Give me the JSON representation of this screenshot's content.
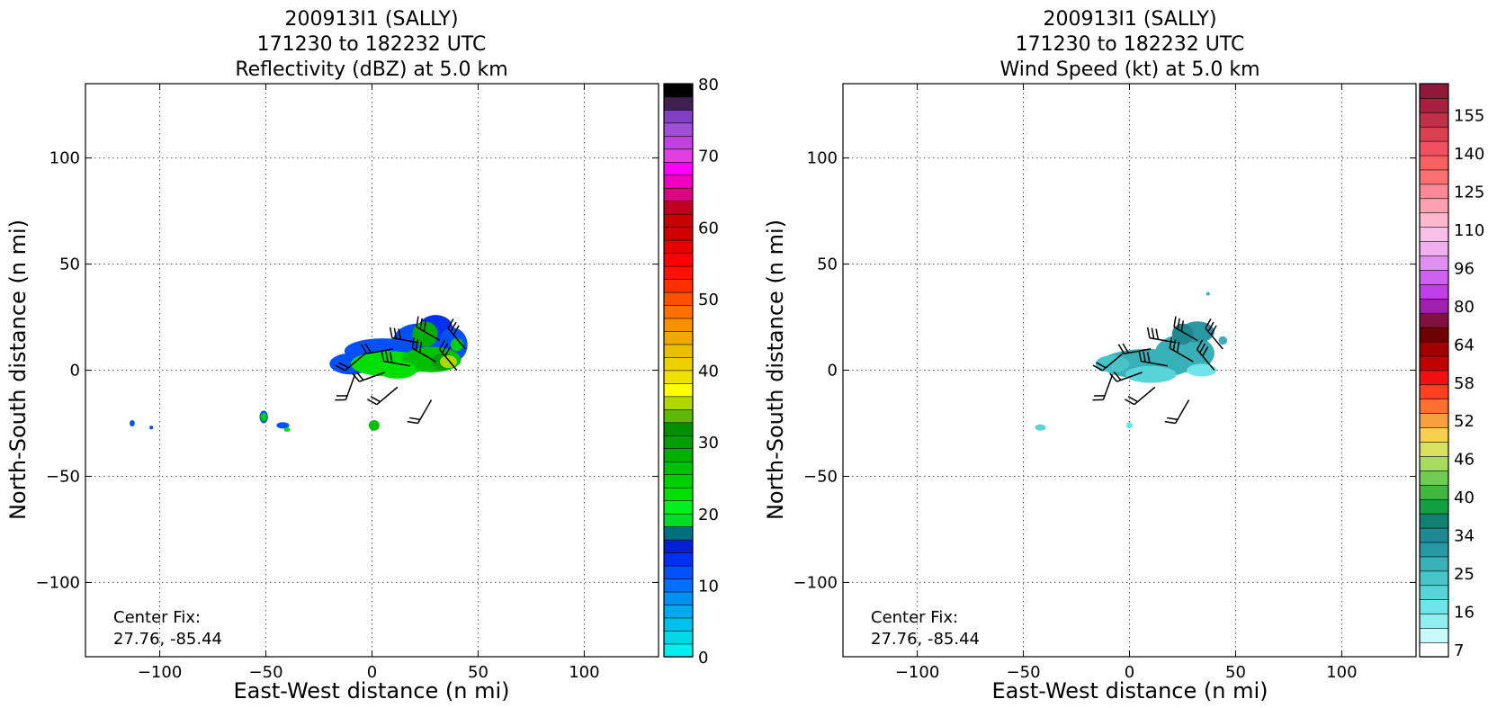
{
  "chart_data": [
    {
      "type": "heatmap",
      "panel": "reflectivity",
      "title_lines": [
        "200913I1 (SALLY)",
        "171230 to 182232 UTC",
        "Reflectivity (dBZ) at 5.0 km"
      ],
      "xlabel": "East-West distance (n mi)",
      "ylabel": "North-South distance (n mi)",
      "xlim": [
        -135,
        135
      ],
      "ylim": [
        -135,
        135
      ],
      "xticks": [
        -100,
        -50,
        0,
        50,
        100
      ],
      "yticks": [
        -100,
        -50,
        0,
        50,
        100
      ],
      "xtick_labels": [
        "−100",
        "−50",
        "0",
        "50",
        "100"
      ],
      "ytick_labels": [
        "−100",
        "−50",
        "0",
        "50",
        "100"
      ],
      "grid": true,
      "annotation_lines": [
        "Center Fix:",
        "27.76, -85.44"
      ],
      "colorbar": {
        "min": 0,
        "max": 80,
        "ticks": [
          0,
          10,
          20,
          30,
          40,
          50,
          60,
          70,
          80
        ],
        "tick_labels": [
          "0",
          "10",
          "20",
          "30",
          "40",
          "50",
          "60",
          "70",
          "80"
        ],
        "colors": [
          "#00f0f0",
          "#00d8e8",
          "#00c0ec",
          "#00a8f0",
          "#0090f4",
          "#0070f8",
          "#0050fc",
          "#0030f0",
          "#0020d0",
          "#007080",
          "#00dc28",
          "#00f020",
          "#00e000",
          "#00d000",
          "#00c000",
          "#00b000",
          "#00a000",
          "#009000",
          "#60b800",
          "#b0d800",
          "#ffff00",
          "#f0e000",
          "#ecd000",
          "#e8c000",
          "#f0a800",
          "#f89000",
          "#ff7000",
          "#ff5000",
          "#ff3000",
          "#ff1000",
          "#ff0000",
          "#e80000",
          "#d00000",
          "#c80000",
          "#c00020",
          "#e00080",
          "#f000c0",
          "#ff00ff",
          "#e040e0",
          "#c040e0",
          "#a050d8",
          "#8040c0",
          "#402050",
          "#000000"
        ]
      },
      "echo_blobs": [
        {
          "x": 5,
          "y": 9,
          "rx": 18,
          "ry": 6,
          "value": 12
        },
        {
          "x": 22,
          "y": 14,
          "rx": 12,
          "ry": 8,
          "value": 12
        },
        {
          "x": 30,
          "y": 20,
          "rx": 8,
          "ry": 6,
          "value": 14
        },
        {
          "x": 38,
          "y": 12,
          "rx": 7,
          "ry": 8,
          "value": 12
        },
        {
          "x": -10,
          "y": 3,
          "rx": 10,
          "ry": 5,
          "value": 12
        },
        {
          "x": 8,
          "y": 3,
          "rx": 18,
          "ry": 6,
          "value": 22
        },
        {
          "x": 28,
          "y": 5,
          "rx": 14,
          "ry": 6,
          "value": 26
        },
        {
          "x": 25,
          "y": 17,
          "rx": 6,
          "ry": 6,
          "value": 28
        },
        {
          "x": 40,
          "y": 12,
          "rx": 3,
          "ry": 3,
          "value": 24
        },
        {
          "x": 33,
          "y": 4,
          "rx": 5,
          "ry": 4,
          "value": 30
        },
        {
          "x": 36,
          "y": 4,
          "rx": 4,
          "ry": 3,
          "value": 36
        },
        {
          "x": 12,
          "y": 0,
          "rx": 9,
          "ry": 4,
          "value": 22
        },
        {
          "x": -51,
          "y": -22,
          "rx": 2,
          "ry": 3,
          "value": 12
        },
        {
          "x": -51,
          "y": -22,
          "rx": 1.5,
          "ry": 2,
          "value": 24
        },
        {
          "x": -42,
          "y": -26,
          "rx": 3,
          "ry": 1.5,
          "value": 12
        },
        {
          "x": -40,
          "y": -28,
          "rx": 1.5,
          "ry": 1,
          "value": 22
        },
        {
          "x": 1,
          "y": -26,
          "rx": 2.5,
          "ry": 2.5,
          "value": 26
        },
        {
          "x": -113,
          "y": -25,
          "rx": 1.2,
          "ry": 1.5,
          "value": 12
        },
        {
          "x": -104,
          "y": -27,
          "rx": 0.6,
          "ry": 0.6,
          "value": 12
        }
      ]
    },
    {
      "type": "heatmap",
      "panel": "wind-speed",
      "title_lines": [
        "200913I1 (SALLY)",
        "171230 to 182232 UTC",
        "Wind Speed (kt) at 5.0 km"
      ],
      "xlabel": "East-West distance (n mi)",
      "ylabel": "North-South distance (n mi)",
      "xlim": [
        -135,
        135
      ],
      "ylim": [
        -135,
        135
      ],
      "xticks": [
        -100,
        -50,
        0,
        50,
        100
      ],
      "yticks": [
        -100,
        -50,
        0,
        50,
        100
      ],
      "xtick_labels": [
        "−100",
        "−50",
        "0",
        "50",
        "100"
      ],
      "ytick_labels": [
        "−100",
        "−50",
        "0",
        "50",
        "100"
      ],
      "grid": true,
      "annotation_lines": [
        "Center Fix:",
        "27.76, -85.44"
      ],
      "colorbar": {
        "labels": [
          "7",
          "16",
          "25",
          "34",
          "40",
          "46",
          "52",
          "58",
          "64",
          "80",
          "96",
          "110",
          "125",
          "140",
          "155"
        ],
        "colors": [
          "#ffffff",
          "#c8fafa",
          "#90f0f0",
          "#70e4e8",
          "#58d4d8",
          "#48c4c8",
          "#38b0b8",
          "#2898a4",
          "#208890",
          "#108070",
          "#10a040",
          "#40b840",
          "#70cc50",
          "#a8dc60",
          "#d8e060",
          "#f8d050",
          "#f8a040",
          "#ff7030",
          "#ff4020",
          "#f01010",
          "#c00000",
          "#a00000",
          "#700000",
          "#801040",
          "#a020b0",
          "#c040e8",
          "#d060f0",
          "#e090f0",
          "#f0b0f0",
          "#f8c0e8",
          "#ffb8d0",
          "#ffa0b0",
          "#ff8898",
          "#ff7070",
          "#f86060",
          "#f05060",
          "#d84050",
          "#c03048",
          "#a82040",
          "#901838"
        ]
      },
      "echo_blobs": [
        {
          "x": 8,
          "y": 3,
          "rx": 22,
          "ry": 7,
          "value": 24
        },
        {
          "x": 26,
          "y": 8,
          "rx": 14,
          "ry": 9,
          "value": 26
        },
        {
          "x": 32,
          "y": 18,
          "rx": 8,
          "ry": 5,
          "value": 28
        },
        {
          "x": 25,
          "y": 17,
          "rx": 5,
          "ry": 5,
          "value": 33
        },
        {
          "x": 10,
          "y": -2,
          "rx": 12,
          "ry": 4,
          "value": 16
        },
        {
          "x": 34,
          "y": 0,
          "rx": 7,
          "ry": 3,
          "value": 14
        },
        {
          "x": -8,
          "y": 3,
          "rx": 8,
          "ry": 4,
          "value": 22
        },
        {
          "x": 44,
          "y": 14,
          "rx": 2,
          "ry": 2,
          "value": 24
        },
        {
          "x": 37,
          "y": 36,
          "rx": 0.5,
          "ry": 0.5,
          "value": 24
        },
        {
          "x": -42,
          "y": -27,
          "rx": 2.5,
          "ry": 1.5,
          "value": 18
        },
        {
          "x": 0,
          "y": -26,
          "rx": 1.5,
          "ry": 1.5,
          "value": 14
        }
      ]
    }
  ],
  "wind_barbs": [
    {
      "x": -3,
      "y": 8,
      "dir": 230,
      "flags": 2
    },
    {
      "x": 10,
      "y": 10,
      "dir": 260,
      "flags": 2
    },
    {
      "x": 22,
      "y": 13,
      "dir": 280,
      "flags": 3
    },
    {
      "x": 32,
      "y": 14,
      "dir": 300,
      "flags": 3
    },
    {
      "x": 44,
      "y": 10,
      "dir": 320,
      "flags": 3
    },
    {
      "x": -8,
      "y": -2,
      "dir": 200,
      "flags": 2
    },
    {
      "x": 6,
      "y": -1,
      "dir": 250,
      "flags": 2
    },
    {
      "x": 18,
      "y": 2,
      "dir": 280,
      "flags": 3
    },
    {
      "x": 30,
      "y": 4,
      "dir": 300,
      "flags": 3
    },
    {
      "x": 40,
      "y": 0,
      "dir": 320,
      "flags": 3
    },
    {
      "x": 12,
      "y": -8,
      "dir": 230,
      "flags": 2
    },
    {
      "x": 28,
      "y": -14,
      "dir": 210,
      "flags": 2
    }
  ]
}
